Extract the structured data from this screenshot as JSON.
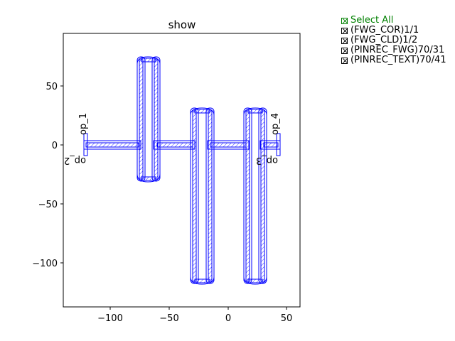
{
  "title": "show",
  "legend": {
    "items": [
      {
        "label": "Select All",
        "checked": true,
        "color": "#008000"
      },
      {
        "label": "(FWG_COR)1/1",
        "checked": true
      },
      {
        "label": "(FWG_CLD)1/2",
        "checked": true
      },
      {
        "label": "(PINREC_FWG)70/31",
        "checked": true
      },
      {
        "label": "(PINREC_TEXT)70/41",
        "checked": true
      }
    ]
  },
  "axes": {
    "x_ticks": [
      "−100",
      "−50",
      "0",
      "50"
    ],
    "y_ticks": [
      "50",
      "0",
      "−50",
      "−100"
    ]
  },
  "ports": [
    "op_1",
    "op_2",
    "op_3",
    "op_4"
  ],
  "colors": {
    "waveguide": "#0000ff",
    "axes": "#000000"
  }
}
